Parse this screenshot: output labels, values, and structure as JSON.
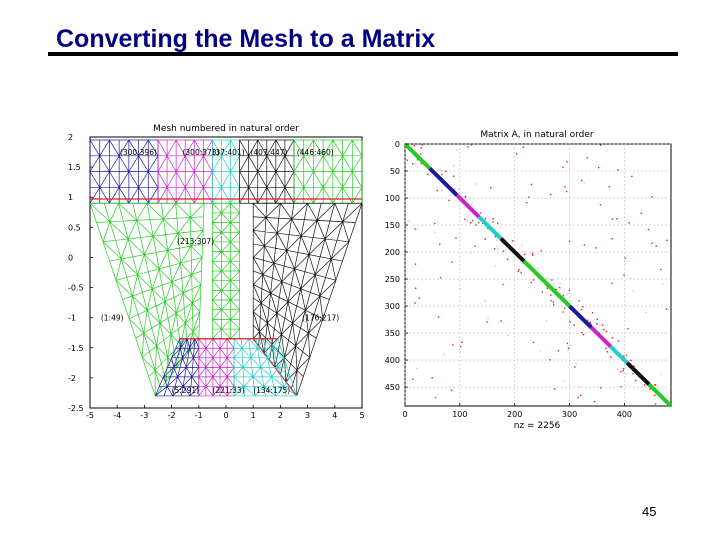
{
  "slide": {
    "title": "Converting the Mesh to a Matrix",
    "page_number": "45"
  },
  "mesh_plot": {
    "title": "Mesh numbered in natural order",
    "x_ticks": [
      "-5",
      "-4",
      "-3",
      "-2",
      "-1",
      "0",
      "1",
      "2",
      "3",
      "4",
      "5"
    ],
    "y_ticks": [
      "2",
      "1.5",
      "1",
      "0.5",
      "0",
      "-0.5",
      "-1",
      "-1.5",
      "-2",
      "-2.5"
    ],
    "xlim": [
      -5,
      5
    ],
    "ylim": [
      -2.5,
      2
    ],
    "labels": [
      {
        "text": "(300:396)",
        "x": -3.9,
        "y": 1.7
      },
      {
        "text": "(300:373)",
        "x": -1.6,
        "y": 1.7
      },
      {
        "text": "(37:401)",
        "x": -0.5,
        "y": 1.7
      },
      {
        "text": "(407:447)",
        "x": 0.9,
        "y": 1.7
      },
      {
        "text": "(446:460)",
        "x": 2.6,
        "y": 1.7
      },
      {
        "text": "(213:307)",
        "x": -1.8,
        "y": 0.22
      },
      {
        "text": "(1:49)",
        "x": -4.6,
        "y": -1.05
      },
      {
        "text": "(176:217)",
        "x": 2.8,
        "y": -1.05
      },
      {
        "text": "(5:291)",
        "x": -2.0,
        "y": -2.25
      },
      {
        "text": "(221:33)",
        "x": -0.5,
        "y": -2.25
      },
      {
        "text": "(134:175)",
        "x": 1.0,
        "y": -2.25
      }
    ],
    "colors": {
      "green": "#22cc22",
      "blue": "#1a1aa0",
      "magenta": "#cc22cc",
      "cyan": "#22cccc",
      "black": "#111111",
      "red": "#dd2222"
    }
  },
  "matrix_plot": {
    "title": "Matrix A, in natural order",
    "x_ticks": [
      "0",
      "100",
      "200",
      "300",
      "400"
    ],
    "y_ticks": [
      "0",
      "50",
      "100",
      "150",
      "200",
      "250",
      "300",
      "350",
      "400",
      "450"
    ],
    "xlabel": "nz = 2256",
    "xlim": [
      0,
      485
    ],
    "ylim": [
      0,
      485
    ],
    "diagonal_segments": [
      {
        "from": 0,
        "to": 45,
        "color": "green"
      },
      {
        "from": 45,
        "to": 95,
        "color": "blue"
      },
      {
        "from": 95,
        "to": 135,
        "color": "magenta"
      },
      {
        "from": 135,
        "to": 175,
        "color": "cyan"
      },
      {
        "from": 175,
        "to": 217,
        "color": "black"
      },
      {
        "from": 217,
        "to": 300,
        "color": "green"
      },
      {
        "from": 300,
        "to": 340,
        "color": "blue"
      },
      {
        "from": 340,
        "to": 375,
        "color": "magenta"
      },
      {
        "from": 375,
        "to": 405,
        "color": "cyan"
      },
      {
        "from": 405,
        "to": 445,
        "color": "black"
      },
      {
        "from": 445,
        "to": 485,
        "color": "green"
      }
    ]
  }
}
